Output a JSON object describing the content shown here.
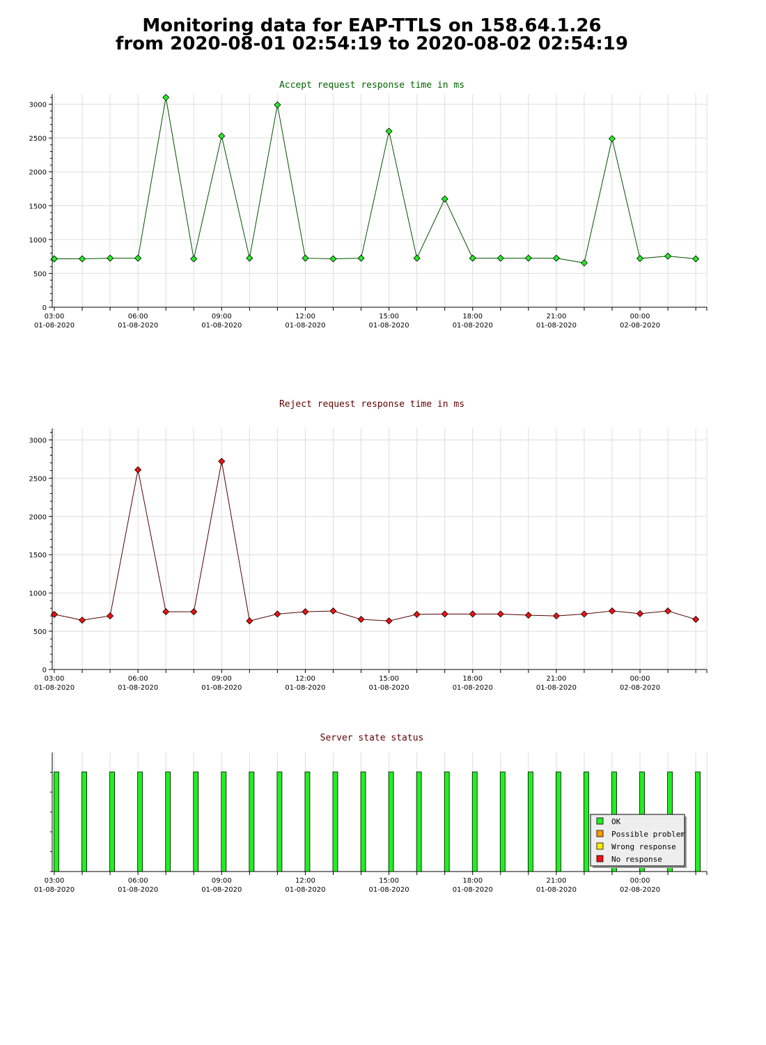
{
  "page": {
    "title_line1": "Monitoring data for EAP-TTLS on 158.64.1.26",
    "title_line2": "from 2020-08-01 02:54:19 to 2020-08-02 02:54:19"
  },
  "chart_data": [
    {
      "id": "accept",
      "type": "line",
      "title": "Accept request response time in ms",
      "title_color": "#006400",
      "xlabel": "",
      "ylabel": "",
      "x": [
        "03:00",
        "04:00",
        "05:00",
        "06:00",
        "07:00",
        "08:00",
        "09:00",
        "10:00",
        "11:00",
        "12:00",
        "13:00",
        "14:00",
        "15:00",
        "16:00",
        "17:00",
        "18:00",
        "19:00",
        "20:00",
        "21:00",
        "22:00",
        "23:00",
        "00:00",
        "01:00",
        "02:00"
      ],
      "x_ticks": [
        {
          "time": "03:00",
          "date": "01-08-2020"
        },
        {
          "time": "06:00",
          "date": "01-08-2020"
        },
        {
          "time": "09:00",
          "date": "01-08-2020"
        },
        {
          "time": "12:00",
          "date": "01-08-2020"
        },
        {
          "time": "15:00",
          "date": "01-08-2020"
        },
        {
          "time": "18:00",
          "date": "01-08-2020"
        },
        {
          "time": "21:00",
          "date": "01-08-2020"
        },
        {
          "time": "00:00",
          "date": "02-08-2020"
        }
      ],
      "series": [
        {
          "values": [
            715,
            715,
            725,
            725,
            3100,
            715,
            2530,
            725,
            2990,
            725,
            715,
            725,
            2600,
            725,
            1600,
            725,
            725,
            725,
            725,
            655,
            2490,
            720,
            755,
            715
          ],
          "line_color": "#005000",
          "marker_color": "#22ee22"
        }
      ],
      "ylim": [
        0,
        3150
      ],
      "y_ticks": [
        0,
        500,
        1000,
        1500,
        2000,
        2500,
        3000
      ],
      "grid": true
    },
    {
      "id": "reject",
      "type": "line",
      "title": "Reject request response time in ms",
      "title_color": "#600000",
      "xlabel": "",
      "ylabel": "",
      "x": [
        "03:00",
        "04:00",
        "05:00",
        "06:00",
        "07:00",
        "08:00",
        "09:00",
        "10:00",
        "11:00",
        "12:00",
        "13:00",
        "14:00",
        "15:00",
        "16:00",
        "17:00",
        "18:00",
        "19:00",
        "20:00",
        "21:00",
        "22:00",
        "23:00",
        "00:00",
        "01:00",
        "02:00"
      ],
      "x_ticks": [
        {
          "time": "03:00",
          "date": "01-08-2020"
        },
        {
          "time": "06:00",
          "date": "01-08-2020"
        },
        {
          "time": "09:00",
          "date": "01-08-2020"
        },
        {
          "time": "12:00",
          "date": "01-08-2020"
        },
        {
          "time": "15:00",
          "date": "01-08-2020"
        },
        {
          "time": "18:00",
          "date": "01-08-2020"
        },
        {
          "time": "21:00",
          "date": "01-08-2020"
        },
        {
          "time": "00:00",
          "date": "02-08-2020"
        }
      ],
      "series": [
        {
          "values": [
            720,
            645,
            700,
            2610,
            755,
            755,
            2720,
            635,
            725,
            755,
            765,
            655,
            635,
            720,
            725,
            725,
            725,
            710,
            700,
            725,
            765,
            730,
            765,
            655
          ],
          "line_color": "#500000",
          "marker_color": "#ee1111"
        }
      ],
      "ylim": [
        0,
        3150
      ],
      "y_ticks": [
        0,
        500,
        1000,
        1500,
        2000,
        2500,
        3000
      ],
      "grid": true
    },
    {
      "id": "status",
      "type": "bar",
      "title": "Server state status",
      "title_color": "#600000",
      "x": [
        "03:00",
        "04:00",
        "05:00",
        "06:00",
        "07:00",
        "08:00",
        "09:00",
        "10:00",
        "11:00",
        "12:00",
        "13:00",
        "14:00",
        "15:00",
        "16:00",
        "17:00",
        "18:00",
        "19:00",
        "20:00",
        "21:00",
        "22:00",
        "23:00",
        "00:00",
        "01:00",
        "02:00"
      ],
      "x_ticks": [
        {
          "time": "03:00",
          "date": "01-08-2020"
        },
        {
          "time": "06:00",
          "date": "01-08-2020"
        },
        {
          "time": "09:00",
          "date": "01-08-2020"
        },
        {
          "time": "12:00",
          "date": "01-08-2020"
        },
        {
          "time": "15:00",
          "date": "01-08-2020"
        },
        {
          "time": "18:00",
          "date": "01-08-2020"
        },
        {
          "time": "21:00",
          "date": "01-08-2020"
        },
        {
          "time": "00:00",
          "date": "02-08-2020"
        }
      ],
      "states": [
        "OK",
        "OK",
        "OK",
        "OK",
        "OK",
        "OK",
        "OK",
        "OK",
        "OK",
        "OK",
        "OK",
        "OK",
        "OK",
        "OK",
        "OK",
        "OK",
        "OK",
        "OK",
        "OK",
        "OK",
        "OK",
        "OK",
        "OK",
        "OK"
      ],
      "legend_position": "bottom-right",
      "legend": [
        {
          "label": "OK",
          "color": "#22ee22"
        },
        {
          "label": "Possible problem",
          "color": "#ff9900"
        },
        {
          "label": "Wrong response",
          "color": "#ffee00"
        },
        {
          "label": "No response",
          "color": "#ee1111"
        }
      ]
    }
  ]
}
